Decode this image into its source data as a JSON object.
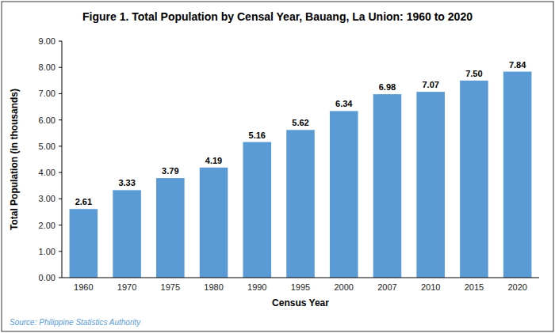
{
  "chart_data": {
    "type": "bar",
    "title": "Figure 1. Total Population by Censal Year, Bauang, La Union: 1960 to 2020",
    "x_label": "Census Year",
    "y_label": "Total Population (in thousands)",
    "source": "Source: Philippine Statistics Authority",
    "categories": [
      "1960",
      "1970",
      "1975",
      "1980",
      "1990",
      "1995",
      "2000",
      "2007",
      "2010",
      "2015",
      "2020"
    ],
    "values": [
      2.61,
      3.33,
      3.79,
      4.19,
      5.16,
      5.62,
      6.34,
      6.98,
      7.07,
      7.5,
      7.84
    ],
    "value_labels": [
      "2.61",
      "3.33",
      "3.79",
      "4.19",
      "5.16",
      "5.62",
      "6.34",
      "6.98",
      "7.07",
      "7.50",
      "7.84"
    ],
    "data_labels": true,
    "color": "#5B9BD5",
    "ylim": [
      0,
      9.0
    ],
    "yticks": [
      {
        "value": 0,
        "label": "0.00"
      },
      {
        "value": 1,
        "label": "1.00"
      },
      {
        "value": 2,
        "label": "2.00"
      },
      {
        "value": 3,
        "label": "3.00"
      },
      {
        "value": 4,
        "label": "4.00"
      },
      {
        "value": 5,
        "label": "5.00"
      },
      {
        "value": 6,
        "label": "6.00"
      },
      {
        "value": 7,
        "label": "7.00"
      },
      {
        "value": 8,
        "label": "8.00"
      },
      {
        "value": 9,
        "label": "9.00"
      }
    ],
    "grid": false
  }
}
